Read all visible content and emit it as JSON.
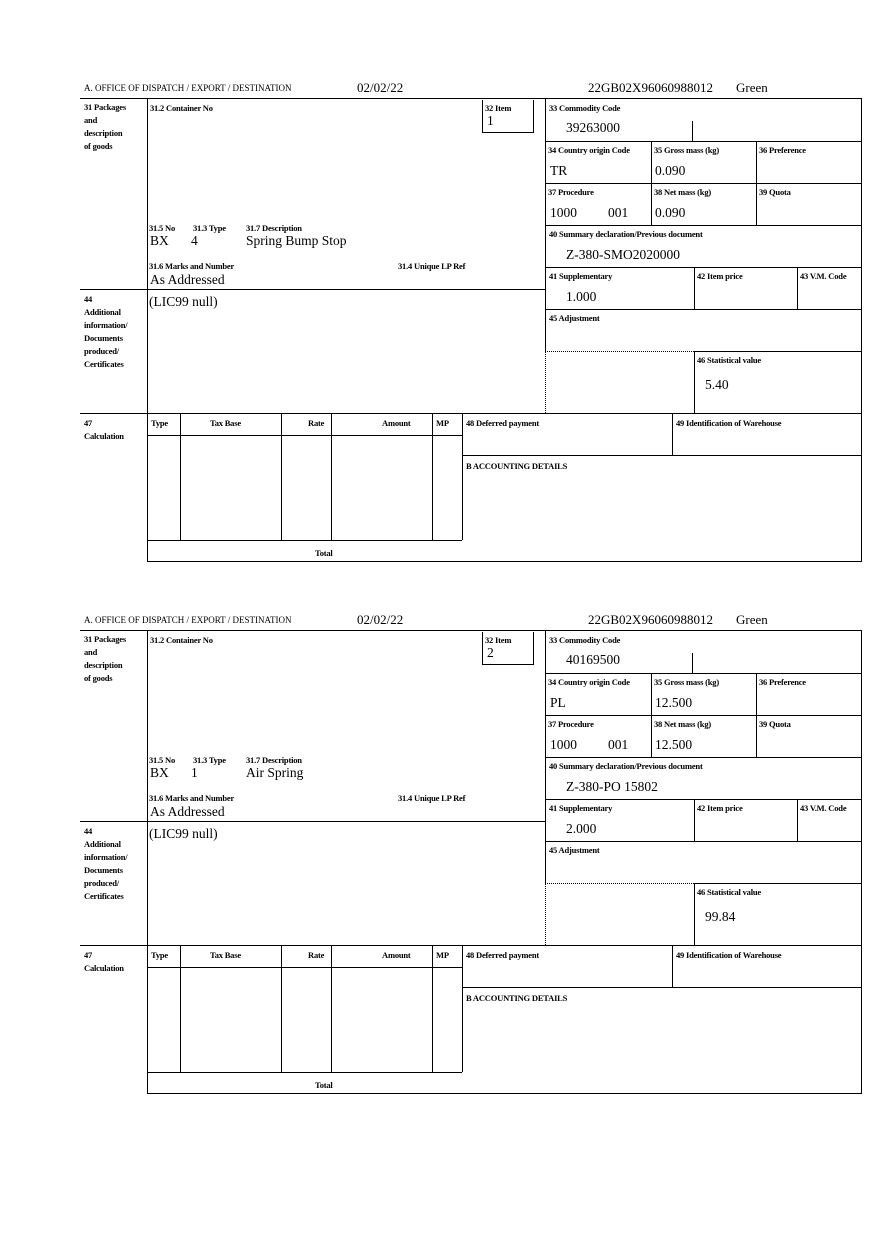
{
  "labels": {
    "office": "A.  OFFICE OF DISPATCH / EXPORT / DESTINATION",
    "box31": "31 Packages\nand\ndescription\nof goods",
    "container": "31.2 Container No",
    "item": "32 Item",
    "commodity": "33 Commodity Code",
    "country": "34 Country origin Code",
    "gross": "35 Gross mass (kg)",
    "preference": "36 Preference",
    "procedure": "37 Procedure",
    "net": "38 Net mass (kg)",
    "quota": "39 Quota",
    "summary": "40 Summary declaration/Previous document",
    "supplementary": "41 Supplementary",
    "item_price": "42 Item price",
    "vm_code": "43 V.M. Code",
    "adjustment": "45 Adjustment",
    "statistical": "46 Statistical value",
    "no": "31.5 No",
    "type": "31.3 Type",
    "description": "31.7 Description",
    "marks": "31.6 Marks and Number",
    "unique_ref": "31.4 Unique LP Ref",
    "box44": "44\nAdditional\ninformation/\nDocuments\nproduced/\nCertificates",
    "box47": "47\nCalculation",
    "calc_type": "Type",
    "calc_tax_base": "Tax Base",
    "calc_rate": "Rate",
    "calc_amount": "Amount",
    "calc_mp": "MP",
    "deferred": "48 Deferred payment",
    "warehouse": "49 Identification of Warehouse",
    "accounting": "B ACCOUNTING DETAILS",
    "total": "Total"
  },
  "items": [
    {
      "date": "02/02/22",
      "reference": "22GB02X96060988012",
      "route": "Green",
      "item_no": "1",
      "commodity_code": "39263000",
      "country": "TR",
      "gross_mass": "0.090",
      "procedure_a": "1000",
      "procedure_b": "001",
      "net_mass": "0.090",
      "summary_doc": "Z-380-SMO2020000",
      "supplementary": "1.000",
      "statistical_value": "5.40",
      "pkg_no": "BX",
      "pkg_type": "4",
      "description": "Spring Bump Stop",
      "marks": "As Addressed",
      "additional_info": "(LIC99 null)"
    },
    {
      "date": "02/02/22",
      "reference": "22GB02X96060988012",
      "route": "Green",
      "item_no": "2",
      "commodity_code": "40169500",
      "country": "PL",
      "gross_mass": "12.500",
      "procedure_a": "1000",
      "procedure_b": "001",
      "net_mass": "12.500",
      "summary_doc": "Z-380-PO 15802",
      "supplementary": "2.000",
      "statistical_value": "99.84",
      "pkg_no": "BX",
      "pkg_type": "1",
      "description": "Air Spring",
      "marks": "As Addressed",
      "additional_info": "(LIC99 null)"
    }
  ]
}
